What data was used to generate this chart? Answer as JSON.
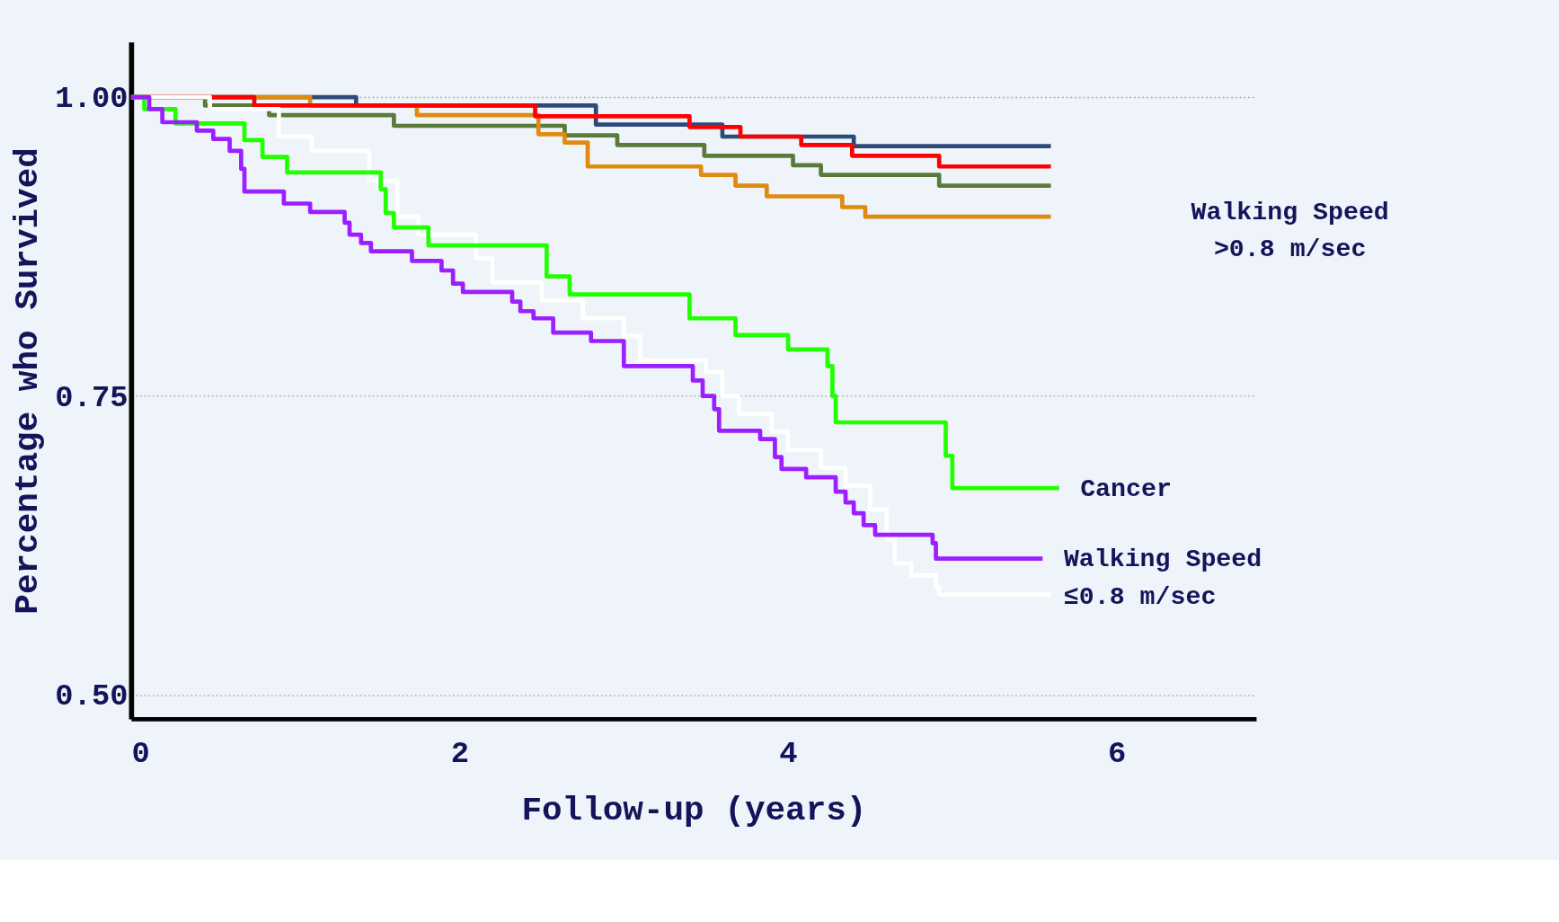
{
  "chart_data": {
    "type": "step",
    "xlabel": "Follow-up (years)",
    "ylabel": "Percentage who Survived",
    "xlim": [
      0,
      6.85
    ],
    "ylim": [
      0.48,
      1.046
    ],
    "xticks": [
      {
        "value": 0,
        "label": "0"
      },
      {
        "value": 2,
        "label": "2"
      },
      {
        "value": 4,
        "label": "4"
      },
      {
        "value": 6,
        "label": "6"
      }
    ],
    "yticks": [
      {
        "value": 0.5,
        "label": "0.50"
      },
      {
        "value": 0.75,
        "label": "0.75"
      },
      {
        "value": 1,
        "label": "1.00"
      }
    ],
    "grid": "y",
    "line_style": "solid",
    "marker": "none",
    "series": [
      {
        "color": "#2e4a7a",
        "x": [
          0,
          1.37,
          2.83,
          3.6,
          4.4,
          5.6
        ],
        "values": [
          1.0,
          0.993,
          0.977,
          0.967,
          0.959,
          0.959
        ]
      },
      {
        "color": "#5a7a3a",
        "x": [
          0,
          0.45,
          0.84,
          1.6,
          2.64,
          2.96,
          3.49,
          4.03,
          4.2,
          4.92,
          5.6
        ],
        "values": [
          1.0,
          0.993,
          0.985,
          0.976,
          0.968,
          0.96,
          0.951,
          0.943,
          0.935,
          0.926,
          0.926
        ]
      },
      {
        "color": "#e08a10",
        "x": [
          0,
          1.09,
          1.74,
          2.48,
          2.64,
          2.78,
          3.47,
          3.68,
          3.87,
          4.33,
          4.47,
          5.6
        ],
        "values": [
          1.0,
          0.993,
          0.985,
          0.969,
          0.962,
          0.942,
          0.935,
          0.926,
          0.917,
          0.908,
          0.9,
          0.9
        ]
      },
      {
        "color": "#ff0000",
        "x": [
          0,
          0.75,
          2.46,
          3.4,
          3.71,
          4.08,
          4.39,
          4.92,
          5.6
        ],
        "values": [
          1.0,
          0.993,
          0.984,
          0.975,
          0.967,
          0.96,
          0.951,
          0.942,
          0.942
        ]
      },
      {
        "color": "#ffffff",
        "x": [
          0,
          0.48,
          0.9,
          1.1,
          1.45,
          1.62,
          1.75,
          2.1,
          2.2,
          2.5,
          2.75,
          3.0,
          3.1,
          3.5,
          3.6,
          3.7,
          3.9,
          4.0,
          4.2,
          4.35,
          4.5,
          4.6,
          4.65,
          4.75,
          4.9,
          4.92,
          5.6
        ],
        "values": [
          1.0,
          0.99,
          0.967,
          0.955,
          0.93,
          0.9,
          0.885,
          0.865,
          0.845,
          0.83,
          0.815,
          0.8,
          0.78,
          0.77,
          0.75,
          0.735,
          0.72,
          0.705,
          0.69,
          0.675,
          0.655,
          0.63,
          0.61,
          0.6,
          0.59,
          0.584,
          0.584
        ]
      },
      {
        "name": "Cancer",
        "color": "#22ff00",
        "x": [
          0,
          0.08,
          0.27,
          0.69,
          0.8,
          0.95,
          1.52,
          1.55,
          1.6,
          1.81,
          2.53,
          2.67,
          3.4,
          3.68,
          4.0,
          4.24,
          4.27,
          4.29,
          4.96,
          5.0,
          5.65
        ],
        "values": [
          1.0,
          0.99,
          0.978,
          0.964,
          0.95,
          0.937,
          0.923,
          0.903,
          0.891,
          0.876,
          0.85,
          0.835,
          0.815,
          0.801,
          0.789,
          0.775,
          0.75,
          0.728,
          0.7,
          0.673,
          0.673
        ]
      },
      {
        "name": "Walking Speed ≤0.8 m/sec",
        "color": "#9b1fff",
        "x": [
          0,
          0.11,
          0.19,
          0.4,
          0.5,
          0.6,
          0.67,
          0.69,
          0.93,
          1.09,
          1.3,
          1.33,
          1.4,
          1.46,
          1.71,
          1.89,
          1.96,
          2.02,
          2.32,
          2.37,
          2.45,
          2.57,
          2.8,
          3.0,
          3.42,
          3.48,
          3.55,
          3.58,
          3.83,
          3.92,
          3.96,
          4.11,
          4.29,
          4.35,
          4.4,
          4.46,
          4.53,
          4.88,
          4.9,
          5.55
        ],
        "values": [
          1.0,
          0.99,
          0.979,
          0.972,
          0.965,
          0.955,
          0.94,
          0.921,
          0.911,
          0.904,
          0.895,
          0.885,
          0.878,
          0.871,
          0.863,
          0.855,
          0.844,
          0.837,
          0.829,
          0.821,
          0.815,
          0.803,
          0.796,
          0.775,
          0.763,
          0.75,
          0.739,
          0.721,
          0.714,
          0.699,
          0.689,
          0.682,
          0.67,
          0.661,
          0.652,
          0.642,
          0.634,
          0.627,
          0.614,
          0.614
        ]
      }
    ],
    "annotations": [
      "Walking Speed >0.8 m/sec"
    ]
  }
}
